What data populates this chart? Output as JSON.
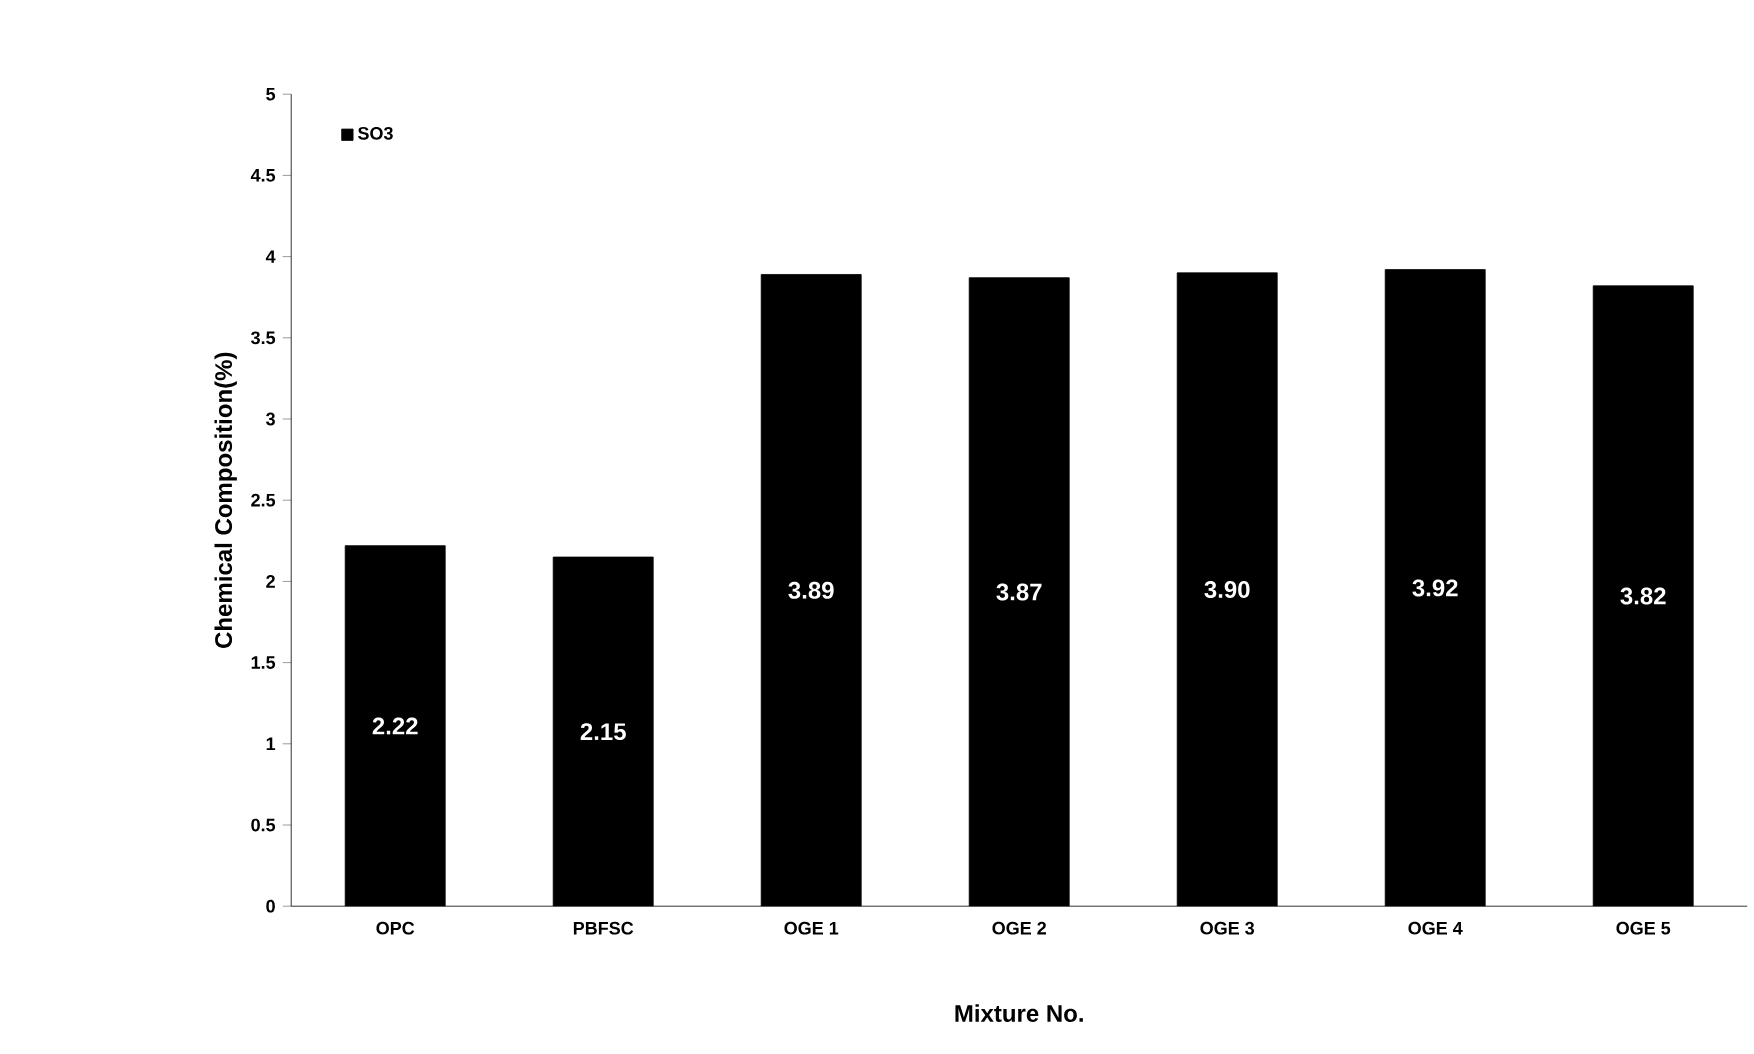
{
  "chart_data": {
    "type": "bar",
    "xlabel": "Mixture No.",
    "ylabel": "Chemical Composition(%)",
    "categories": [
      "OPC",
      "PBFSC",
      "OGE 1",
      "OGE 2",
      "OGE 3",
      "OGE 4",
      "OGE 5"
    ],
    "series": [
      {
        "name": "SO3",
        "color": "#000000",
        "values": [
          2.22,
          2.15,
          3.89,
          3.87,
          3.9,
          3.92,
          3.82
        ],
        "value_labels": [
          "2.22",
          "2.15",
          "3.89",
          "3.87",
          "3.90",
          "3.92",
          "3.82"
        ]
      }
    ],
    "ylim": [
      0,
      5
    ],
    "yticks": [
      0,
      0.5,
      1,
      1.5,
      2,
      2.5,
      3,
      3.5,
      4,
      4.5,
      5
    ],
    "legend": "top left"
  }
}
